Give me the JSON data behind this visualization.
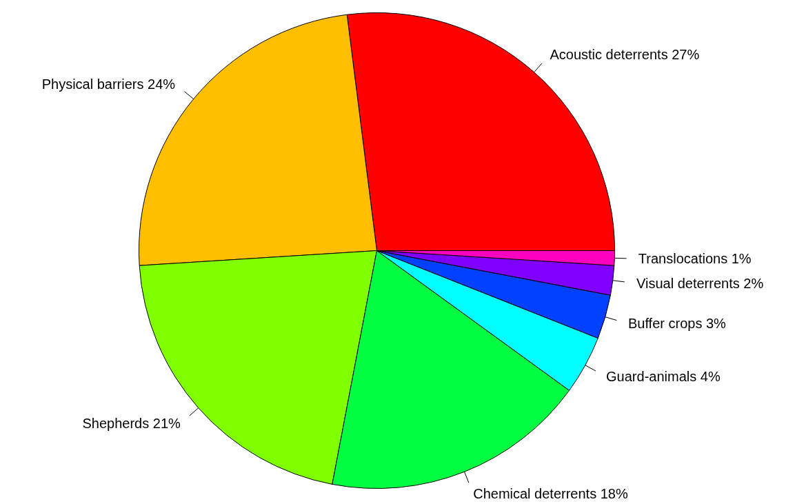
{
  "chart_data": {
    "type": "pie",
    "categories": [
      "Acoustic deterrents",
      "Physical barriers",
      "Shepherds",
      "Chemical deterrents",
      "Guard-animals",
      "Buffer crops",
      "Visual deterrents",
      "Translocations"
    ],
    "values": [
      27,
      24,
      21,
      18,
      4,
      3,
      2,
      1
    ],
    "value_labels": [
      "27%",
      "24%",
      "21%",
      "18%",
      "4%",
      "3%",
      "2%",
      "1%"
    ],
    "colors": [
      "#ff0000",
      "#ffbf00",
      "#80ff00",
      "#00ff40",
      "#00ffff",
      "#0040ff",
      "#8000ff",
      "#ff00bf"
    ],
    "legend": false
  }
}
